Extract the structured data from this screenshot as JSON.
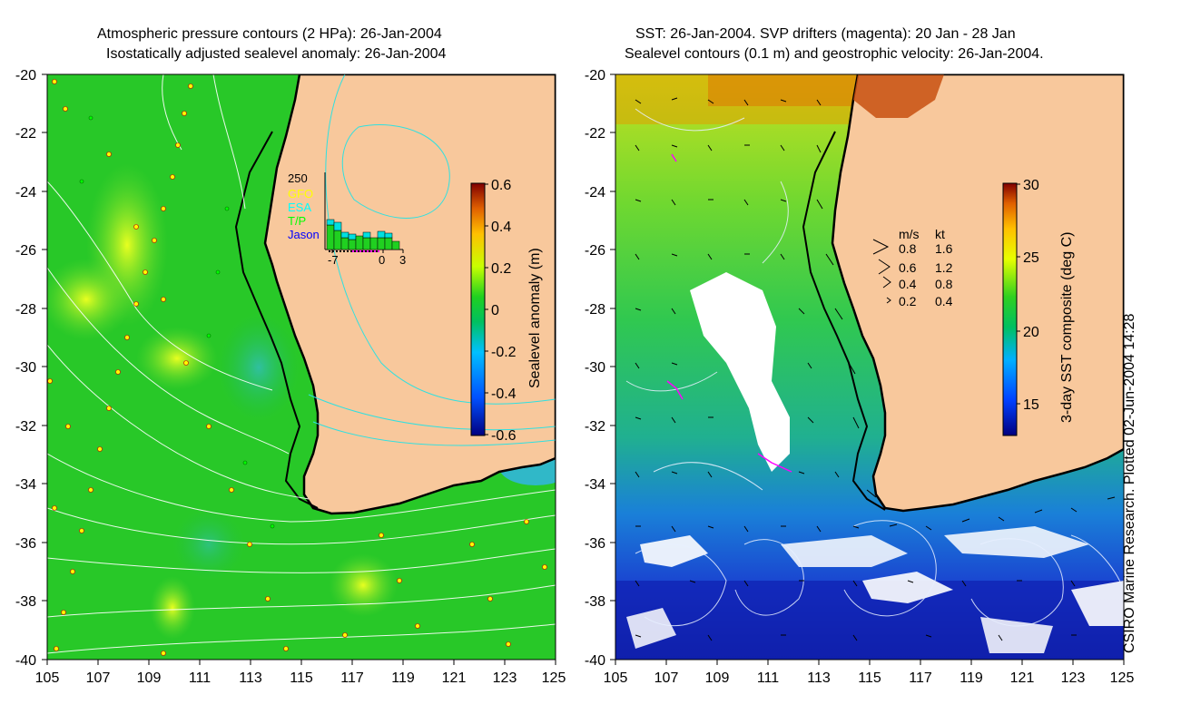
{
  "left_panel": {
    "title_line1": "Atmospheric pressure contours (2 HPa): 26-Jan-2004",
    "title_line2": "Isostatically adjusted sealevel anomaly: 26-Jan-2004",
    "colorbar": {
      "label": "Sealevel anomaly (m)",
      "ticks": [
        "0.6",
        "0.4",
        "0.2",
        "0",
        "-0.2",
        "-0.4",
        "-0.6"
      ],
      "range": [
        -0.6,
        0.6
      ]
    },
    "inset": {
      "ymax_label": "250",
      "legend": [
        {
          "name": "GFO",
          "color": "#ffff00"
        },
        {
          "name": "ESA",
          "color": "#00ffff"
        },
        {
          "name": "T/P",
          "color": "#00ff00"
        },
        {
          "name": "Jason",
          "color": "#0000ff"
        }
      ],
      "x_tick_labels": [
        "-7",
        "0",
        "3"
      ]
    }
  },
  "right_panel": {
    "title_line1": "SST: 26-Jan-2004. SVP drifters (magenta): 20 Jan - 28 Jan",
    "title_line2": "Sealevel contours (0.1 m) and geostrophic velocity: 26-Jan-2004.",
    "colorbar": {
      "label": "3-day SST composite (deg C)",
      "ticks": [
        "30",
        "25",
        "20",
        "15"
      ],
      "range": [
        12.5,
        30
      ]
    },
    "speed_legend": {
      "header_ms": "m/s",
      "header_kt": "kt",
      "rows": [
        {
          "ms": "0.8",
          "kt": "1.6"
        },
        {
          "ms": "0.6",
          "kt": "1.2"
        },
        {
          "ms": "0.4",
          "kt": "0.8"
        },
        {
          "ms": "0.2",
          "kt": "0.4"
        }
      ]
    }
  },
  "axes": {
    "lat_labels": [
      "-20",
      "-22",
      "-24",
      "-26",
      "-28",
      "-30",
      "-32",
      "-34",
      "-36",
      "-38",
      "-40"
    ],
    "lon_labels": [
      "105",
      "107",
      "109",
      "111",
      "113",
      "115",
      "117",
      "119",
      "121",
      "123",
      "125"
    ],
    "lon_range": [
      105,
      125
    ],
    "lat_range": [
      -40,
      -20
    ]
  },
  "credit": "CSIRO Marine Research. Plotted 02-Jun-2004 14:28",
  "colors": {
    "land": "#f8c89c",
    "ocean_green": "#22cc22",
    "coast": "#000000"
  }
}
